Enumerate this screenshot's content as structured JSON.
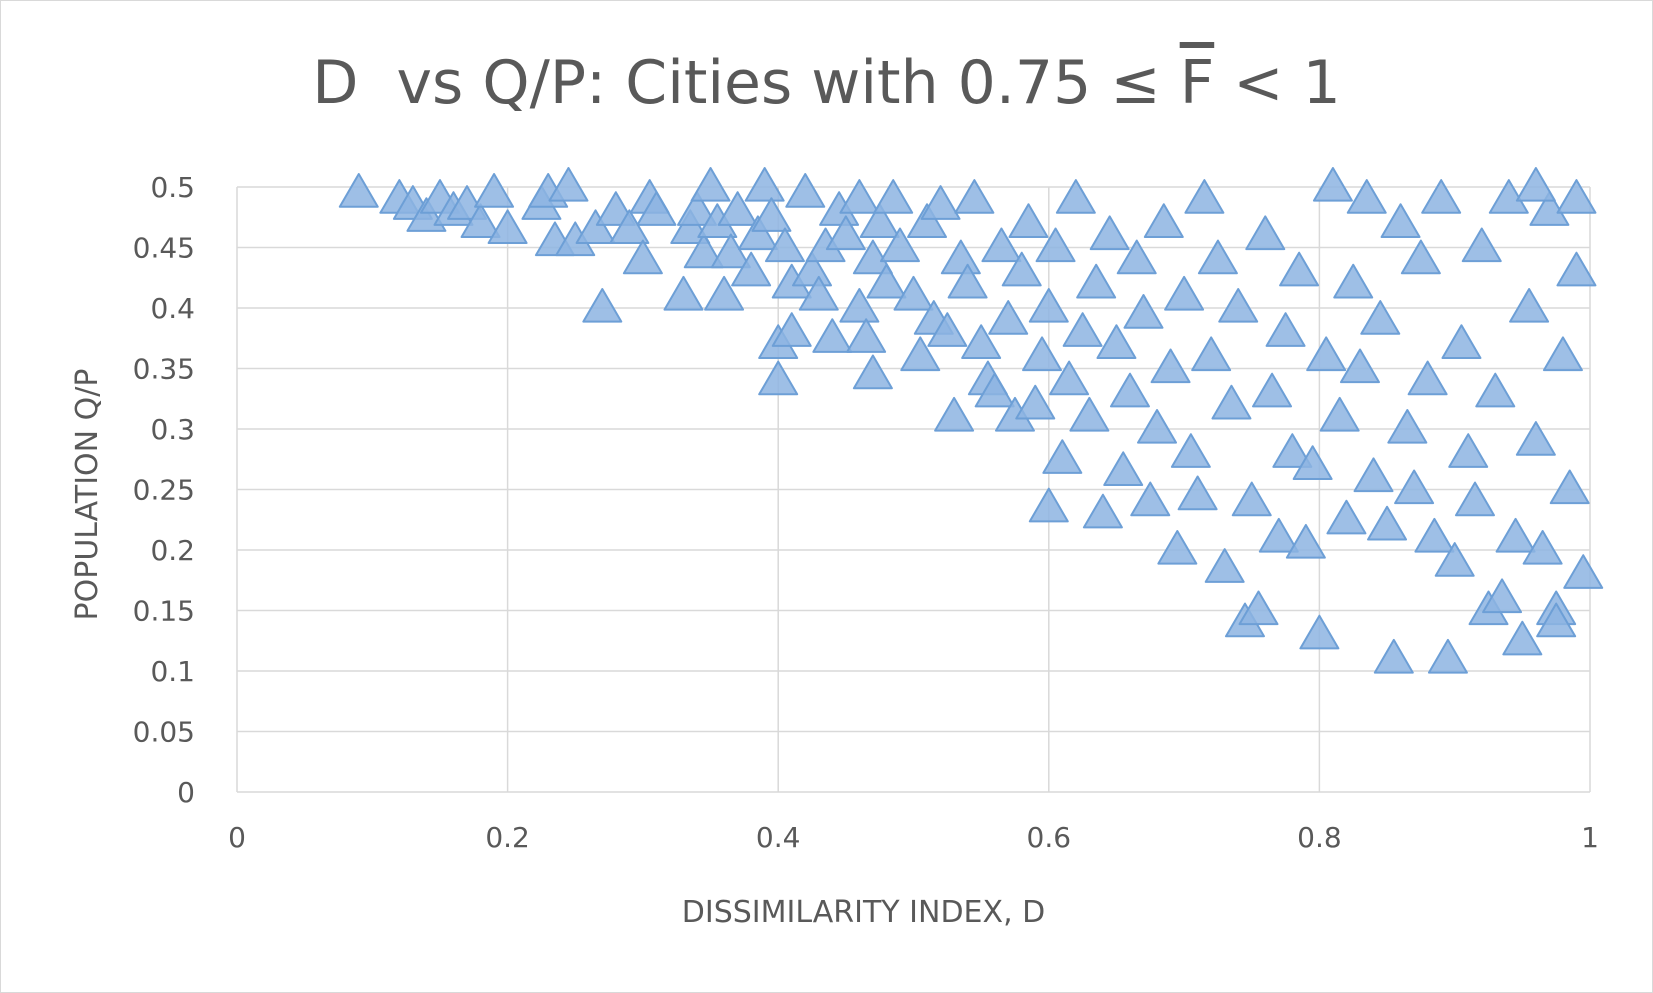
{
  "chart_data": {
    "type": "scatter",
    "title": "D  vs Q/P: Cities with 0.75 ≤ ",
    "title_symbol": "F",
    "title_suffix": " < 1",
    "xlabel": "DISSIMILARITY INDEX, D",
    "ylabel": "POPULATION Q/P",
    "xlim": [
      0,
      1
    ],
    "ylim": [
      0,
      0.5
    ],
    "x_ticks": [
      "0",
      "0.2",
      "0.4",
      "0.6",
      "0.8",
      "1"
    ],
    "y_ticks": [
      "0",
      "0.05",
      "0.1",
      "0.15",
      "0.2",
      "0.25",
      "0.3",
      "0.35",
      "0.4",
      "0.45",
      "0.5"
    ],
    "grid": true,
    "marker": "triangle",
    "marker_color": "#8db4e2",
    "marker_edge": "#6d9fd6",
    "points": [
      [
        0.09,
        0.495
      ],
      [
        0.12,
        0.49
      ],
      [
        0.13,
        0.485
      ],
      [
        0.14,
        0.475
      ],
      [
        0.15,
        0.49
      ],
      [
        0.16,
        0.48
      ],
      [
        0.17,
        0.485
      ],
      [
        0.18,
        0.47
      ],
      [
        0.19,
        0.495
      ],
      [
        0.2,
        0.465
      ],
      [
        0.225,
        0.485
      ],
      [
        0.23,
        0.495
      ],
      [
        0.245,
        0.5
      ],
      [
        0.235,
        0.455
      ],
      [
        0.25,
        0.455
      ],
      [
        0.265,
        0.465
      ],
      [
        0.27,
        0.4
      ],
      [
        0.28,
        0.48
      ],
      [
        0.29,
        0.465
      ],
      [
        0.3,
        0.44
      ],
      [
        0.305,
        0.49
      ],
      [
        0.31,
        0.48
      ],
      [
        0.33,
        0.41
      ],
      [
        0.335,
        0.465
      ],
      [
        0.34,
        0.48
      ],
      [
        0.345,
        0.445
      ],
      [
        0.35,
        0.5
      ],
      [
        0.355,
        0.47
      ],
      [
        0.36,
        0.41
      ],
      [
        0.365,
        0.445
      ],
      [
        0.37,
        0.48
      ],
      [
        0.38,
        0.43
      ],
      [
        0.385,
        0.46
      ],
      [
        0.39,
        0.5
      ],
      [
        0.395,
        0.475
      ],
      [
        0.4,
        0.37
      ],
      [
        0.4,
        0.34
      ],
      [
        0.405,
        0.45
      ],
      [
        0.41,
        0.38
      ],
      [
        0.41,
        0.42
      ],
      [
        0.42,
        0.495
      ],
      [
        0.425,
        0.43
      ],
      [
        0.43,
        0.41
      ],
      [
        0.435,
        0.45
      ],
      [
        0.44,
        0.375
      ],
      [
        0.445,
        0.48
      ],
      [
        0.45,
        0.46
      ],
      [
        0.46,
        0.4
      ],
      [
        0.46,
        0.49
      ],
      [
        0.465,
        0.375
      ],
      [
        0.47,
        0.345
      ],
      [
        0.47,
        0.44
      ],
      [
        0.475,
        0.47
      ],
      [
        0.48,
        0.42
      ],
      [
        0.485,
        0.49
      ],
      [
        0.49,
        0.45
      ],
      [
        0.5,
        0.41
      ],
      [
        0.505,
        0.36
      ],
      [
        0.51,
        0.47
      ],
      [
        0.515,
        0.39
      ],
      [
        0.52,
        0.485
      ],
      [
        0.525,
        0.38
      ],
      [
        0.53,
        0.31
      ],
      [
        0.535,
        0.44
      ],
      [
        0.54,
        0.42
      ],
      [
        0.545,
        0.49
      ],
      [
        0.55,
        0.37
      ],
      [
        0.555,
        0.34
      ],
      [
        0.56,
        0.33
      ],
      [
        0.565,
        0.45
      ],
      [
        0.57,
        0.39
      ],
      [
        0.575,
        0.31
      ],
      [
        0.58,
        0.43
      ],
      [
        0.585,
        0.47
      ],
      [
        0.59,
        0.32
      ],
      [
        0.595,
        0.36
      ],
      [
        0.6,
        0.235
      ],
      [
        0.6,
        0.4
      ],
      [
        0.605,
        0.45
      ],
      [
        0.61,
        0.275
      ],
      [
        0.615,
        0.34
      ],
      [
        0.62,
        0.49
      ],
      [
        0.625,
        0.38
      ],
      [
        0.63,
        0.31
      ],
      [
        0.635,
        0.42
      ],
      [
        0.64,
        0.23
      ],
      [
        0.645,
        0.46
      ],
      [
        0.65,
        0.37
      ],
      [
        0.655,
        0.265
      ],
      [
        0.66,
        0.33
      ],
      [
        0.665,
        0.44
      ],
      [
        0.67,
        0.395
      ],
      [
        0.675,
        0.24
      ],
      [
        0.68,
        0.3
      ],
      [
        0.685,
        0.47
      ],
      [
        0.69,
        0.35
      ],
      [
        0.695,
        0.2
      ],
      [
        0.7,
        0.41
      ],
      [
        0.705,
        0.28
      ],
      [
        0.71,
        0.245
      ],
      [
        0.715,
        0.49
      ],
      [
        0.72,
        0.36
      ],
      [
        0.725,
        0.44
      ],
      [
        0.73,
        0.185
      ],
      [
        0.735,
        0.32
      ],
      [
        0.74,
        0.4
      ],
      [
        0.745,
        0.14
      ],
      [
        0.75,
        0.24
      ],
      [
        0.755,
        0.15
      ],
      [
        0.76,
        0.46
      ],
      [
        0.765,
        0.33
      ],
      [
        0.77,
        0.21
      ],
      [
        0.775,
        0.38
      ],
      [
        0.78,
        0.28
      ],
      [
        0.785,
        0.43
      ],
      [
        0.79,
        0.205
      ],
      [
        0.795,
        0.27
      ],
      [
        0.8,
        0.13
      ],
      [
        0.805,
        0.36
      ],
      [
        0.81,
        0.5
      ],
      [
        0.815,
        0.31
      ],
      [
        0.82,
        0.225
      ],
      [
        0.825,
        0.42
      ],
      [
        0.83,
        0.35
      ],
      [
        0.835,
        0.49
      ],
      [
        0.84,
        0.26
      ],
      [
        0.845,
        0.39
      ],
      [
        0.85,
        0.22
      ],
      [
        0.855,
        0.11
      ],
      [
        0.86,
        0.47
      ],
      [
        0.865,
        0.3
      ],
      [
        0.87,
        0.25
      ],
      [
        0.875,
        0.44
      ],
      [
        0.88,
        0.34
      ],
      [
        0.885,
        0.21
      ],
      [
        0.89,
        0.49
      ],
      [
        0.895,
        0.11
      ],
      [
        0.9,
        0.19
      ],
      [
        0.905,
        0.37
      ],
      [
        0.91,
        0.28
      ],
      [
        0.915,
        0.24
      ],
      [
        0.92,
        0.45
      ],
      [
        0.925,
        0.15
      ],
      [
        0.93,
        0.33
      ],
      [
        0.935,
        0.16
      ],
      [
        0.94,
        0.49
      ],
      [
        0.945,
        0.21
      ],
      [
        0.95,
        0.125
      ],
      [
        0.955,
        0.4
      ],
      [
        0.96,
        0.29
      ],
      [
        0.965,
        0.2
      ],
      [
        0.97,
        0.48
      ],
      [
        0.975,
        0.15
      ],
      [
        0.98,
        0.36
      ],
      [
        0.985,
        0.25
      ],
      [
        0.99,
        0.43
      ],
      [
        0.995,
        0.18
      ],
      [
        0.96,
        0.5
      ],
      [
        0.975,
        0.14
      ],
      [
        0.99,
        0.49
      ]
    ]
  }
}
